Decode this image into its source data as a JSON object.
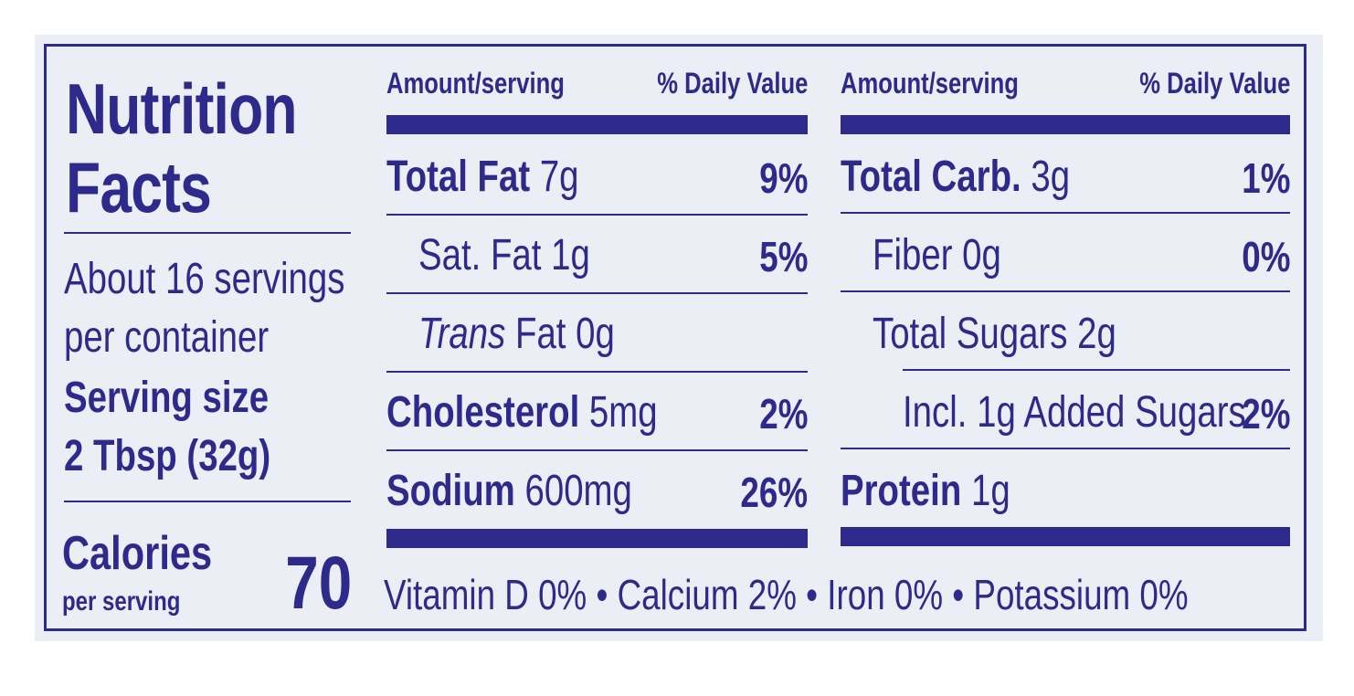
{
  "title": {
    "line1": "Nutrition",
    "line2": "Facts"
  },
  "servings": {
    "per_container_line1": "About 16 servings",
    "per_container_line2": "per container",
    "size_label": "Serving size",
    "size_value": "2 Tbsp (32g)"
  },
  "calories": {
    "label": "Calories",
    "sublabel": "per serving",
    "value": "70"
  },
  "headers": {
    "amount": "Amount/serving",
    "daily_value": "% Daily Value"
  },
  "left_rows": [
    {
      "name": "Total Fat",
      "amount": "7g",
      "dv": "9%"
    },
    {
      "name": "Sat. Fat",
      "amount": "1g",
      "dv": "5%"
    },
    {
      "name_italic": "Trans",
      "name": "Fat",
      "amount": "0g",
      "dv": ""
    },
    {
      "name": "Cholesterol",
      "amount": "5mg",
      "dv": "2%"
    },
    {
      "name": "Sodium",
      "amount": "600mg",
      "dv": "26%"
    }
  ],
  "right_rows": [
    {
      "name": "Total Carb.",
      "amount": "3g",
      "dv": "1%"
    },
    {
      "name": "Fiber",
      "amount": "0g",
      "dv": "0%"
    },
    {
      "name": "Total Sugars",
      "amount": "2g",
      "dv": ""
    },
    {
      "name": "Incl. 1g Added Sugars",
      "amount": "",
      "dv": "2%"
    },
    {
      "name": "Protein",
      "amount": "1g",
      "dv": ""
    }
  ],
  "vitamins": "Vitamin D 0% • Calcium 2% • Iron 0% • Potassium 0%",
  "colors": {
    "ink": "#2e2a8c",
    "background": "#eceef5"
  }
}
